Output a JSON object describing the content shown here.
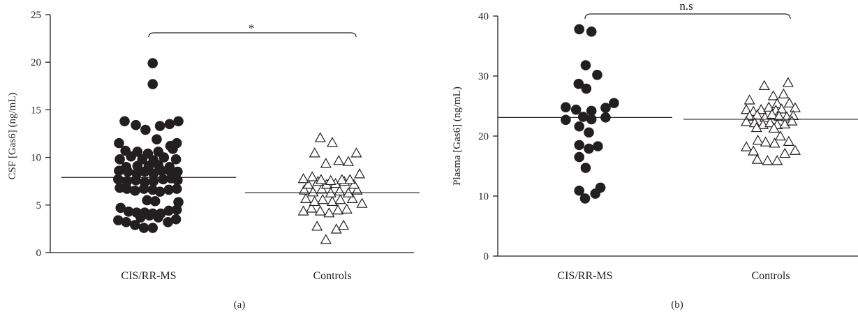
{
  "chart_data": [
    {
      "type": "scatter",
      "panel_label": "(a)",
      "ylabel": "CSF [Gas6] (ng/mL)",
      "ylim": [
        0,
        25
      ],
      "yticks": [
        0,
        5,
        10,
        15,
        20,
        25
      ],
      "categories": [
        "CIS/RR-MS",
        "Controls"
      ],
      "significance": "*",
      "series": [
        {
          "category": "CIS/RR-MS",
          "marker": "filled-circle",
          "mean": 7.9,
          "points": [
            [
              -0.38,
              3.4
            ],
            [
              -0.28,
              3.2
            ],
            [
              -0.17,
              2.9
            ],
            [
              -0.06,
              2.6
            ],
            [
              0.05,
              2.6
            ],
            [
              0.24,
              3.2
            ],
            [
              0.34,
              3.5
            ],
            [
              -0.35,
              4.7
            ],
            [
              -0.25,
              4.3
            ],
            [
              -0.15,
              4.2
            ],
            [
              -0.05,
              4.2
            ],
            [
              0.05,
              4.1
            ],
            [
              0.15,
              4.1
            ],
            [
              0.25,
              4.4
            ],
            [
              0.35,
              4.5
            ],
            [
              0.01,
              3.9
            ],
            [
              0.12,
              3.7
            ],
            [
              -0.1,
              3.7
            ],
            [
              -0.36,
              6.8
            ],
            [
              -0.27,
              6.7
            ],
            [
              -0.17,
              6.5
            ],
            [
              -0.06,
              6.7
            ],
            [
              0.05,
              6.6
            ],
            [
              0.14,
              6.4
            ],
            [
              0.25,
              6.6
            ],
            [
              0.35,
              6.7
            ],
            [
              -0.02,
              5.5
            ],
            [
              0.08,
              5.4
            ],
            [
              0.37,
              5.3
            ],
            [
              -0.38,
              7.7
            ],
            [
              -0.27,
              7.5
            ],
            [
              -0.16,
              7.6
            ],
            [
              -0.05,
              7.4
            ],
            [
              0.06,
              7.5
            ],
            [
              0.18,
              7.7
            ],
            [
              0.28,
              7.8
            ],
            [
              0.36,
              7.6
            ],
            [
              -0.37,
              8.6
            ],
            [
              -0.26,
              8.5
            ],
            [
              -0.15,
              8.3
            ],
            [
              -0.05,
              8.5
            ],
            [
              0.06,
              8.3
            ],
            [
              0.16,
              8.6
            ],
            [
              0.26,
              8.6
            ],
            [
              0.36,
              8.5
            ],
            [
              -0.28,
              9.0
            ],
            [
              -0.14,
              9.1
            ],
            [
              0.0,
              9.1
            ],
            [
              0.12,
              9.2
            ],
            [
              0.26,
              9.0
            ],
            [
              -0.36,
              9.8
            ],
            [
              -0.22,
              10.1
            ],
            [
              -0.08,
              9.8
            ],
            [
              0.06,
              9.7
            ],
            [
              0.19,
              10.0
            ],
            [
              0.34,
              9.8
            ],
            [
              -0.29,
              10.7
            ],
            [
              -0.14,
              10.6
            ],
            [
              -0.01,
              10.4
            ],
            [
              0.12,
              10.6
            ],
            [
              0.3,
              10.9
            ],
            [
              -0.37,
              11.5
            ],
            [
              0.27,
              11.2
            ],
            [
              0.35,
              11.5
            ],
            [
              0.1,
              11.9
            ],
            [
              -0.3,
              13.8
            ],
            [
              -0.16,
              13.4
            ],
            [
              -0.04,
              12.9
            ],
            [
              0.14,
              13.3
            ],
            [
              0.26,
              13.5
            ],
            [
              0.37,
              13.8
            ],
            [
              0.05,
              17.7
            ],
            [
              0.05,
              19.9
            ]
          ]
        },
        {
          "category": "Controls",
          "marker": "open-triangle",
          "mean": 6.3,
          "points": [
            [
              -0.08,
              1.3
            ],
            [
              0.05,
              2.4
            ],
            [
              0.14,
              2.8
            ],
            [
              -0.19,
              2.7
            ],
            [
              -0.36,
              4.3
            ],
            [
              -0.26,
              4.6
            ],
            [
              -0.15,
              4.3
            ],
            [
              -0.04,
              4.1
            ],
            [
              0.07,
              4.4
            ],
            [
              0.18,
              4.5
            ],
            [
              -0.33,
              5.6
            ],
            [
              -0.22,
              5.3
            ],
            [
              -0.12,
              5.5
            ],
            [
              0.0,
              5.3
            ],
            [
              0.1,
              5.5
            ],
            [
              0.25,
              5.6
            ],
            [
              0.37,
              5.1
            ],
            [
              -0.35,
              6.5
            ],
            [
              -0.24,
              6.3
            ],
            [
              -0.13,
              6.6
            ],
            [
              -0.02,
              6.2
            ],
            [
              0.09,
              6.4
            ],
            [
              0.2,
              6.2
            ],
            [
              0.31,
              6.5
            ],
            [
              -0.3,
              7.1
            ],
            [
              -0.18,
              7.4
            ],
            [
              -0.07,
              7.1
            ],
            [
              0.04,
              7.2
            ],
            [
              0.15,
              7.4
            ],
            [
              0.27,
              7.1
            ],
            [
              -0.36,
              7.7
            ],
            [
              -0.25,
              7.9
            ],
            [
              -0.14,
              7.6
            ],
            [
              -0.02,
              7.5
            ],
            [
              0.12,
              7.6
            ],
            [
              0.22,
              7.6
            ],
            [
              0.34,
              8.2
            ],
            [
              -0.08,
              9.3
            ],
            [
              0.08,
              9.6
            ],
            [
              0.2,
              9.5
            ],
            [
              0.3,
              10.4
            ],
            [
              -0.22,
              10.4
            ],
            [
              -0.15,
              12.0
            ],
            [
              0.0,
              11.5
            ]
          ]
        }
      ]
    },
    {
      "type": "scatter",
      "panel_label": "(b)",
      "ylabel": "Plasma [Gas6] (ng/mL)",
      "ylim": [
        0,
        40
      ],
      "yticks": [
        0,
        10,
        20,
        30,
        40
      ],
      "categories": [
        "CIS/RR-MS",
        "Controls"
      ],
      "significance": "n.s",
      "series": [
        {
          "category": "CIS/RR-MS",
          "marker": "filled-circle",
          "mean": 23.1,
          "points": [
            [
              -0.09,
              37.8
            ],
            [
              0.1,
              37.4
            ],
            [
              0.01,
              31.8
            ],
            [
              0.19,
              30.2
            ],
            [
              -0.1,
              28.7
            ],
            [
              0.02,
              27.9
            ],
            [
              -0.3,
              24.8
            ],
            [
              -0.14,
              24.4
            ],
            [
              0.1,
              24.2
            ],
            [
              0.32,
              24.7
            ],
            [
              0.45,
              25.5
            ],
            [
              -0.3,
              22.7
            ],
            [
              -0.03,
              23.2
            ],
            [
              0.1,
              22.8
            ],
            [
              0.32,
              23.1
            ],
            [
              -0.09,
              21.6
            ],
            [
              0.06,
              20.6
            ],
            [
              -0.09,
              18.5
            ],
            [
              0.06,
              17.9
            ],
            [
              0.2,
              18.3
            ],
            [
              -0.09,
              16.5
            ],
            [
              0.01,
              14.7
            ],
            [
              -0.09,
              10.9
            ],
            [
              0.24,
              11.4
            ],
            [
              0.0,
              9.6
            ],
            [
              0.16,
              10.4
            ]
          ]
        },
        {
          "category": "Controls",
          "marker": "open-triangle",
          "mean": 22.8,
          "points": [
            [
              0.27,
              28.8
            ],
            [
              -0.1,
              28.3
            ],
            [
              0.04,
              26.6
            ],
            [
              0.2,
              26.9
            ],
            [
              -0.33,
              25.9
            ],
            [
              0.1,
              25.3
            ],
            [
              0.29,
              25.4
            ],
            [
              -0.38,
              24.3
            ],
            [
              -0.27,
              24.0
            ],
            [
              -0.15,
              24.3
            ],
            [
              -0.03,
              24.7
            ],
            [
              0.08,
              24.2
            ],
            [
              0.17,
              24.4
            ],
            [
              0.38,
              24.6
            ],
            [
              -0.33,
              23.2
            ],
            [
              -0.21,
              23.4
            ],
            [
              -0.09,
              23.0
            ],
            [
              0.02,
              23.5
            ],
            [
              0.13,
              23.2
            ],
            [
              0.25,
              23.1
            ],
            [
              0.35,
              23.3
            ],
            [
              -0.38,
              22.3
            ],
            [
              -0.25,
              22.1
            ],
            [
              -0.12,
              21.8
            ],
            [
              -0.01,
              22.1
            ],
            [
              0.1,
              21.8
            ],
            [
              0.22,
              21.9
            ],
            [
              0.33,
              22.4
            ],
            [
              -0.22,
              21.3
            ],
            [
              0.05,
              21.2
            ],
            [
              -0.2,
              19.2
            ],
            [
              0.15,
              19.9
            ],
            [
              -0.08,
              18.9
            ],
            [
              0.06,
              18.7
            ],
            [
              0.28,
              19.0
            ],
            [
              -0.38,
              18.1
            ],
            [
              -0.27,
              17.4
            ],
            [
              0.38,
              17.5
            ],
            [
              0.22,
              17.0
            ],
            [
              -0.21,
              16.0
            ],
            [
              -0.05,
              15.8
            ],
            [
              0.1,
              15.8
            ]
          ]
        }
      ]
    }
  ]
}
